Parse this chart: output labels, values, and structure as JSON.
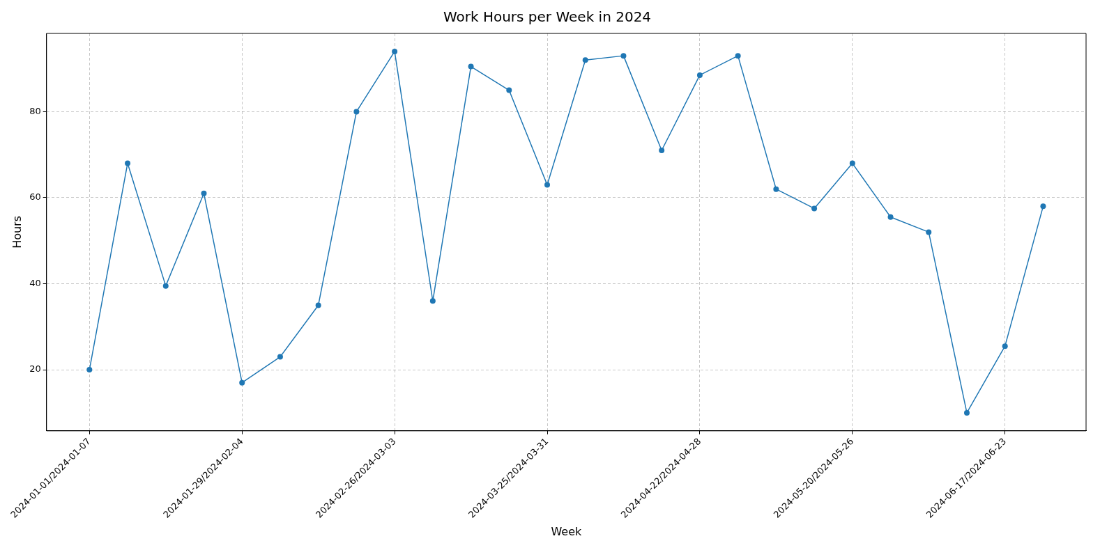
{
  "chart_data": {
    "type": "line",
    "title": "Work Hours per Week in 2024",
    "xlabel": "Week",
    "ylabel": "Hours",
    "categories": [
      "2024-01-01/2024-01-07",
      null,
      null,
      null,
      "2024-01-29/2024-02-04",
      null,
      null,
      null,
      "2024-02-26/2024-03-03",
      null,
      null,
      null,
      "2024-03-25/2024-03-31",
      null,
      null,
      null,
      "2024-04-22/2024-04-28",
      null,
      null,
      null,
      "2024-05-20/2024-05-26",
      null,
      null,
      null,
      "2024-06-17/2024-06-23",
      null
    ],
    "series": [
      {
        "color": "#1f77b4",
        "values": [
          20,
          68,
          39.5,
          61,
          17,
          23,
          35,
          80,
          94,
          36,
          90.5,
          85,
          63,
          92,
          93,
          71,
          88.5,
          93,
          62,
          57.5,
          68,
          55.5,
          52,
          10,
          25.5,
          58
        ]
      }
    ],
    "ylim": [
      5.8,
      98.2
    ],
    "yticks": [
      20,
      40,
      60,
      80
    ],
    "grid": true,
    "marker": "circle",
    "line_style": "solid"
  }
}
